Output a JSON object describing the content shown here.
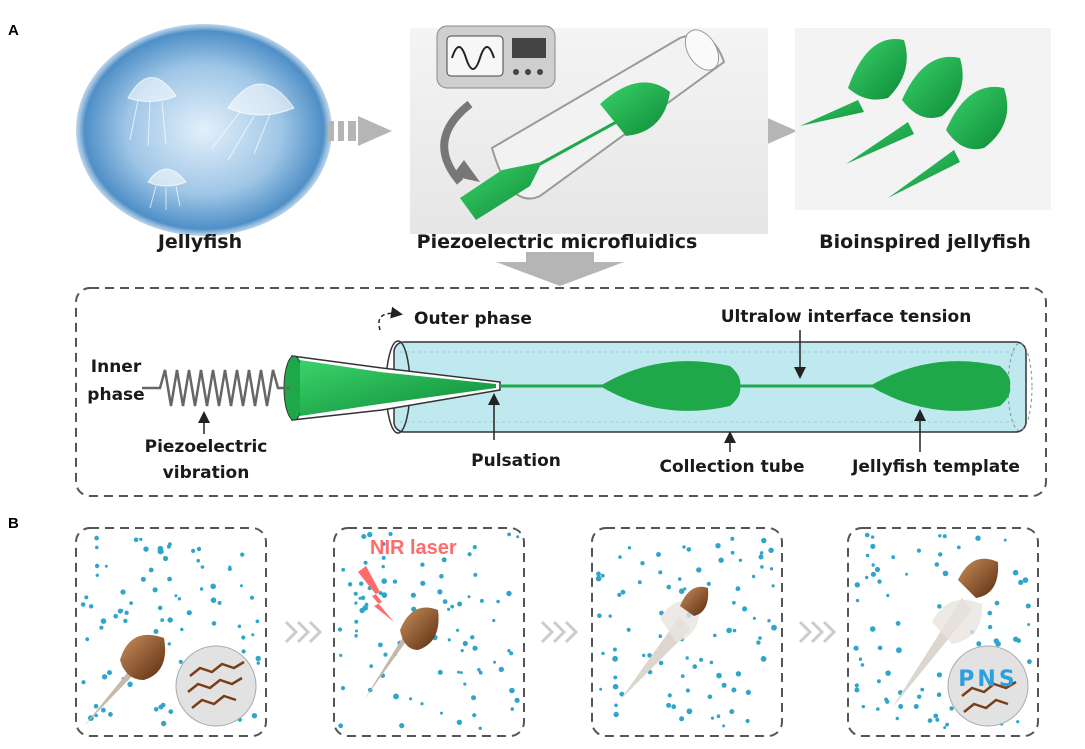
{
  "panels": {
    "a_letter": "A",
    "b_letter": "B"
  },
  "top_row": {
    "jellyfish_caption": "Jellyfish",
    "device_caption": "Piezoelectric microfluidics",
    "bioinspired_caption": "Bioinspired jellyfish"
  },
  "schematic": {
    "inner_phase_line1": "Inner",
    "inner_phase_line2": "phase",
    "piezo_line1": "Piezoelectric",
    "piezo_line2": "vibration",
    "outer_phase": "Outer phase",
    "pulsation": "Pulsation",
    "ultralow": "Ultralow interface tension",
    "collection_tube": "Collection tube",
    "jellyfish_template": "Jellyfish template"
  },
  "sequence": {
    "laser_label": "NIR laser",
    "pns_label": "PNS"
  },
  "colors": {
    "green": "#1fa84a",
    "tube_fill": "#bfe9ee",
    "dash": "#555555",
    "dots": "#2fa6c9",
    "laser": "#ff6b6b",
    "graphene": "#7a3e16"
  }
}
